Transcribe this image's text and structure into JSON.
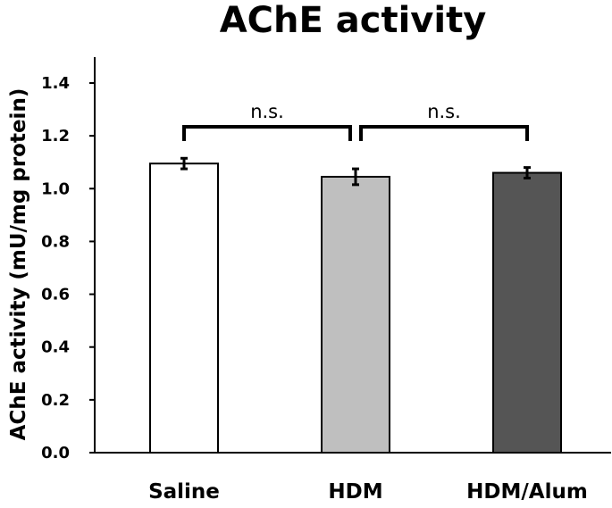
{
  "chart_data": {
    "type": "bar",
    "title": "AChE activity",
    "xlabel": "",
    "ylabel": "AChE activity (mU/mg protein)",
    "categories": [
      "Saline",
      "HDM",
      "HDM/Alum"
    ],
    "values": [
      1.095,
      1.045,
      1.06
    ],
    "errors": [
      0.02,
      0.03,
      0.02
    ],
    "ylim": [
      0.0,
      1.4
    ],
    "yticks": [
      "0.0",
      "0.2",
      "0.4",
      "0.6",
      "0.8",
      "1.0",
      "1.2",
      "1.4"
    ],
    "bar_colors": [
      "#ffffff",
      "#bfbfbf",
      "#555555"
    ],
    "grid": false,
    "annotations": [
      {
        "from": 0,
        "to": 1,
        "label": "n.s.",
        "y": 1.22
      },
      {
        "from": 1,
        "to": 2,
        "label": "n.s.",
        "y": 1.22
      }
    ]
  }
}
